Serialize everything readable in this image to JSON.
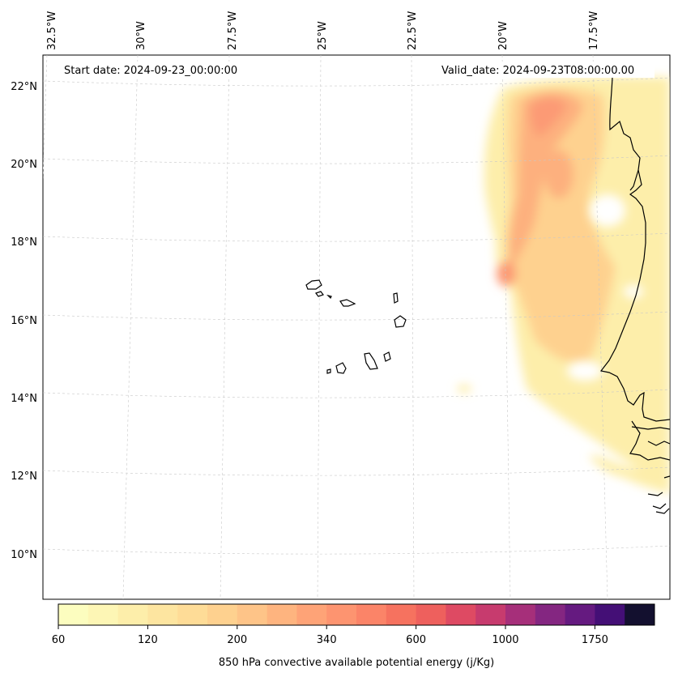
{
  "header": {
    "start_date": "Start date: 2024-09-23_00:00:00",
    "valid_date": "Valid_date: 2024-09-23T08:00:00.00"
  },
  "longitude_labels": [
    "32.5°W",
    "30°W",
    "27.5°W",
    "25°W",
    "22.5°W",
    "20°W",
    "17.5°W"
  ],
  "latitude_labels": [
    "22°N",
    "20°N",
    "18°N",
    "16°N",
    "14°N",
    "12°N",
    "10°N"
  ],
  "colorbar": {
    "title": "850 hPa convective available potential energy (j/Kg)",
    "tick_labels": [
      "60",
      "120",
      "200",
      "340",
      "600",
      "1000",
      "1750"
    ],
    "colors": [
      "#fcfdbf",
      "#fdf6b5",
      "#fdeeaa",
      "#fde5a0",
      "#fedc97",
      "#fed18f",
      "#fec488",
      "#feb47f",
      "#fea377",
      "#fd9470",
      "#fb8468",
      "#f6725f",
      "#ee605d",
      "#de4a63",
      "#c73b6e",
      "#a62f7a",
      "#842681",
      "#651a80",
      "#440f76",
      "#13102f"
    ]
  },
  "map_colors": {
    "coastline": "#000000",
    "gridline": "#c8c8c8",
    "cape_low": "#fdeeaa",
    "cape_mid": "#fed18f",
    "cape_high": "#fdb07e",
    "cape_peak": "#fc9a74"
  }
}
